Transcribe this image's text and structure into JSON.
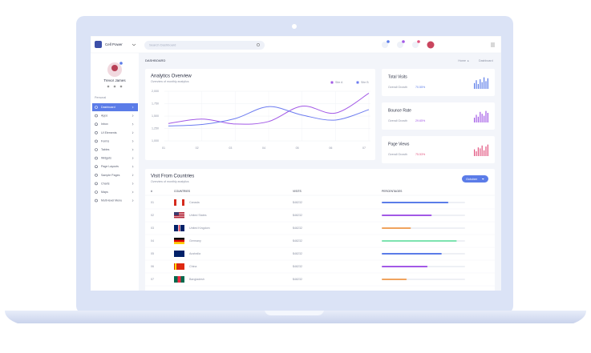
{
  "sidebar": {
    "brand": "Cell Power",
    "user": "Trevor James",
    "section": "Personal",
    "menu": [
      "Dashboard",
      "Apps",
      "Inbox",
      "UI Elements",
      "Forms",
      "Tables",
      "Widgets",
      "Page Layouts",
      "Sample Pages",
      "Charts",
      "Maps",
      "Multi-level Menu"
    ]
  },
  "topbar": {
    "search": "Search Dashboard"
  },
  "breadcrumb": {
    "page": "DASHBOARD",
    "trail": [
      "Home",
      "Dashboard"
    ]
  },
  "chart_data": {
    "type": "line",
    "title": "Analytics Overview",
    "subtitle": "Overview of monthly analytics",
    "categories": [
      "01",
      "02",
      "03",
      "04",
      "05",
      "06",
      "07"
    ],
    "series": [
      {
        "name": "Site A",
        "color": "#a259e6",
        "values": [
          1350,
          1440,
          1340,
          1390,
          1700,
          1560,
          1960
        ]
      },
      {
        "name": "Site B",
        "color": "#6d7cf0",
        "values": [
          1300,
          1330,
          1450,
          1690,
          1520,
          1420,
          1630
        ]
      }
    ],
    "ylim": [
      1000,
      2000
    ],
    "yticks": [
      {
        "value": 1000,
        "label": "1,000"
      },
      {
        "value": 1250,
        "label": "1,250"
      },
      {
        "value": 1500,
        "label": "1,500"
      },
      {
        "value": 1750,
        "label": "1,750"
      },
      {
        "value": 2000,
        "label": "2,000"
      }
    ],
    "grid": true
  },
  "stats": [
    {
      "title": "Total Visits",
      "label": "Overall Growth",
      "value": "70.55%",
      "color": "#5b7ce8",
      "bars": [
        6,
        9,
        5,
        10,
        7,
        12,
        8,
        11
      ]
    },
    {
      "title": "Bounce Rate",
      "label": "Overall Growth",
      "value": "29.65%",
      "color": "#a259e6",
      "bars": [
        5,
        8,
        6,
        11,
        9,
        7,
        12,
        10
      ]
    },
    {
      "title": "Page Views",
      "label": "Overall Growth",
      "value": "75.53%",
      "color": "#e2547f",
      "bars": [
        7,
        5,
        9,
        8,
        11,
        6,
        10,
        12
      ]
    }
  ],
  "countries": {
    "title": "Visit From Countries",
    "subtitle": "Overview of monthly analytics",
    "filter": "October",
    "headers": [
      "#",
      "COUNTRIES",
      "VISITS",
      "PERCENTAGES"
    ],
    "rows": [
      {
        "rank": "01",
        "country": "Canada",
        "visits": "$48232",
        "percentage": 80,
        "color": "#5b7ce8"
      },
      {
        "rank": "02",
        "country": "United States",
        "visits": "$48232",
        "percentage": 60,
        "color": "#a259e6"
      },
      {
        "rank": "03",
        "country": "United Kingdom",
        "visits": "$48232",
        "percentage": 35,
        "color": "#f0a35e"
      },
      {
        "rank": "04",
        "country": "Germany",
        "visits": "$48232",
        "percentage": 90,
        "color": "#7de3b0"
      },
      {
        "rank": "05",
        "country": "Australia",
        "visits": "$48232",
        "percentage": 72,
        "color": "#5b7ce8"
      },
      {
        "rank": "06",
        "country": "China",
        "visits": "$48232",
        "percentage": 55,
        "color": "#a259e6"
      },
      {
        "rank": "07",
        "country": "Bangladesh",
        "visits": "$48232",
        "percentage": 30,
        "color": "#f0a35e"
      }
    ]
  }
}
